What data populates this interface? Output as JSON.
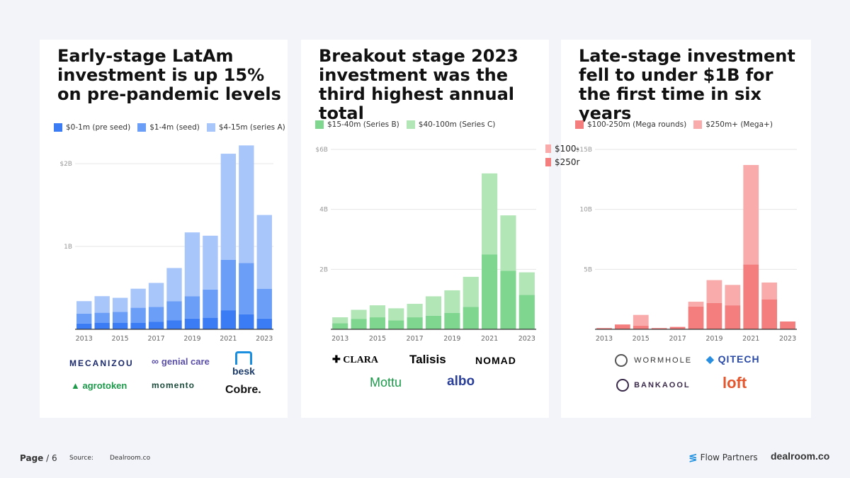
{
  "panels": [
    {
      "title": "Early-stage LatAm investment is up 15% on pre-pandemic levels",
      "chart_data": {
        "type": "bar",
        "stacked": true,
        "categories": [
          "2013",
          "2014",
          "2015",
          "2016",
          "2017",
          "2018",
          "2019",
          "2020",
          "2021",
          "2022",
          "2023"
        ],
        "x_tick_labels": [
          "2013",
          "2015",
          "2017",
          "2019",
          "2021",
          "2023"
        ],
        "y_ticks": [
          {
            "value": 1000,
            "label": "1B"
          },
          {
            "value": 2000,
            "label": "$2B"
          }
        ],
        "ylim": [
          0,
          2300
        ],
        "series": [
          {
            "name": "$0-1m (pre seed)",
            "color": "#3b7cf5",
            "values": [
              70,
              80,
              80,
              80,
              90,
              110,
              130,
              140,
              230,
              180,
              130
            ]
          },
          {
            "name": "$1-4m (seed)",
            "color": "#6a9ef7",
            "values": [
              120,
              120,
              130,
              180,
              180,
              230,
              270,
              340,
              610,
              620,
              360
            ]
          },
          {
            "name": "$4-15m (series A)",
            "color": "#a9c6fb",
            "values": [
              150,
              200,
              170,
              230,
              290,
              400,
              770,
              650,
              1280,
              1420,
              890
            ]
          }
        ]
      },
      "logos": [
        {
          "name": "mecanizou-logo",
          "text": "MECANIZOU",
          "color": "#1b2a6b"
        },
        {
          "name": "genial-care-logo",
          "text": "genial care",
          "color": "#5a4fa8"
        },
        {
          "name": "besk-logo",
          "text": "besk",
          "color": "#1a3a6b"
        },
        {
          "name": "agrotoken-logo",
          "text": "agrotoken",
          "color": "#1c9a4a"
        },
        {
          "name": "momento-logo",
          "text": "momento",
          "color": "#1a4a3a"
        },
        {
          "name": "cobre-logo",
          "text": "Cobre.",
          "color": "#111111"
        }
      ]
    },
    {
      "title": "Breakout stage 2023 investment was the third highest annual total",
      "chart_data": {
        "type": "bar",
        "stacked": true,
        "categories": [
          "2013",
          "2014",
          "2015",
          "2016",
          "2017",
          "2018",
          "2019",
          "2020",
          "2021",
          "2022",
          "2023"
        ],
        "x_tick_labels": [
          "2013",
          "2015",
          "2017",
          "2019",
          "2021",
          "2023"
        ],
        "y_ticks": [
          {
            "value": 2000,
            "label": "2B"
          },
          {
            "value": 4000,
            "label": "4B"
          },
          {
            "value": 6000,
            "label": "$6B"
          }
        ],
        "ylim": [
          0,
          6000
        ],
        "series": [
          {
            "name": "$15-40m (Series B)",
            "color": "#7fd68e",
            "values": [
              200,
              350,
              400,
              300,
              400,
              450,
              550,
              750,
              2500,
              1950,
              1150
            ]
          },
          {
            "name": "$40-100m (Series C)",
            "color": "#b2e6b7",
            "values": [
              200,
              300,
              400,
              400,
              450,
              650,
              750,
              1000,
              2700,
              1850,
              750
            ]
          }
        ]
      },
      "logos": [
        {
          "name": "clara-logo",
          "text": "CLARA",
          "color": "#111111"
        },
        {
          "name": "talisis-logo",
          "text": "Talisis",
          "color": "#111111"
        },
        {
          "name": "nomad-logo",
          "text": "NOMAD",
          "color": "#111111"
        },
        {
          "name": "mottu-logo",
          "text": "Mottu",
          "color": "#1c9a4a"
        },
        {
          "name": "albo-logo",
          "text": "albo",
          "color": "#2a3f9a"
        }
      ]
    },
    {
      "title": "Late-stage investment fell to under $1B for the first time in six years",
      "chart_data": {
        "type": "bar",
        "stacked": true,
        "categories": [
          "2013",
          "2014",
          "2015",
          "2016",
          "2017",
          "2018",
          "2019",
          "2020",
          "2021",
          "2022",
          "2023"
        ],
        "x_tick_labels": [
          "2013",
          "2015",
          "2017",
          "2019",
          "2021",
          "2023"
        ],
        "y_ticks": [
          {
            "value": 5000,
            "label": "5B"
          },
          {
            "value": 10000,
            "label": "10B"
          },
          {
            "value": 15000,
            "label": "$15B"
          }
        ],
        "ylim": [
          0,
          15000
        ],
        "series": [
          {
            "name": "$100-250m (Mega rounds)",
            "color": "#f47d7d",
            "values": [
              100,
              400,
              300,
              100,
              200,
              1900,
              2200,
              2000,
              5400,
              2500,
              650
            ]
          },
          {
            "name": "$250m+ (Mega+)",
            "color": "#f9aaaa",
            "values": [
              0,
              0,
              900,
              0,
              0,
              400,
              1900,
              1700,
              8300,
              1400,
              0
            ]
          }
        ]
      },
      "logos": [
        {
          "name": "wormhole-logo",
          "text": "WORMHOLE",
          "color": "#333333"
        },
        {
          "name": "qitech-logo",
          "text": "QITECH",
          "color": "#2a4aa8"
        },
        {
          "name": "bankaool-logo",
          "text": "BANKAOOL",
          "color": "#3a2a4a"
        },
        {
          "name": "loft-logo",
          "text": "loft",
          "color": "#e4572e"
        }
      ]
    }
  ],
  "stray_legend": {
    "item1": {
      "label": "$100-",
      "color": "#f9aaaa"
    },
    "item2": {
      "label": "$250r",
      "color": "#f47d7d"
    }
  },
  "footer": {
    "page_label": "Page",
    "page_number": "/ 6",
    "source_label": "Source:",
    "source_value": "Dealroom.co",
    "brand1": "Flow Partners",
    "brand2": "dealroom.co"
  }
}
